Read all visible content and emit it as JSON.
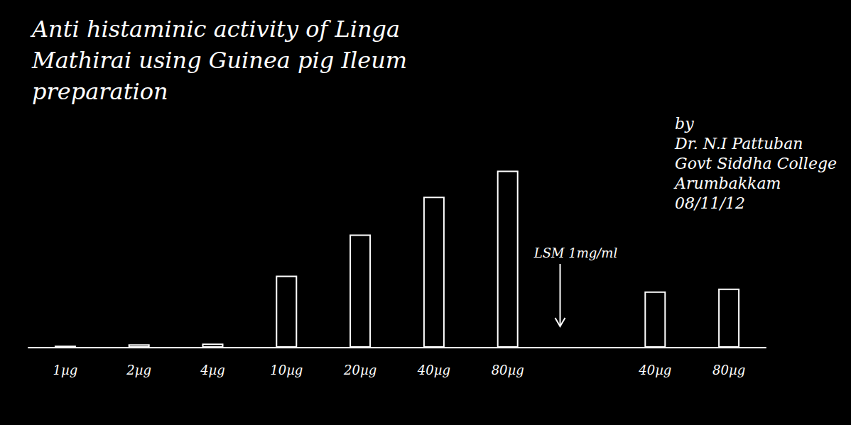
{
  "chart_data": {
    "type": "bar",
    "title": "Anti histaminic activity of Linga Mathirai using Guinea pig Ileum preparation",
    "categories": [
      "1µg",
      "2µg",
      "4µg",
      "10µg",
      "20µg",
      "40µg",
      "80µg",
      null,
      "40µg",
      "80µg"
    ],
    "values": [
      3,
      5,
      6,
      105,
      165,
      220,
      258,
      null,
      82,
      86
    ],
    "color": "#ffffff",
    "ylim": [
      0,
      300
    ],
    "yticks": [
      0,
      300
    ],
    "grid": false,
    "tick_labels": "x",
    "annotations": [
      "LSM 1mg/ml"
    ],
    "author": [
      "by",
      "Dr. N.I Pattuban",
      "Govt Siddha College",
      "Arumbakkam",
      "08/11/12"
    ]
  }
}
